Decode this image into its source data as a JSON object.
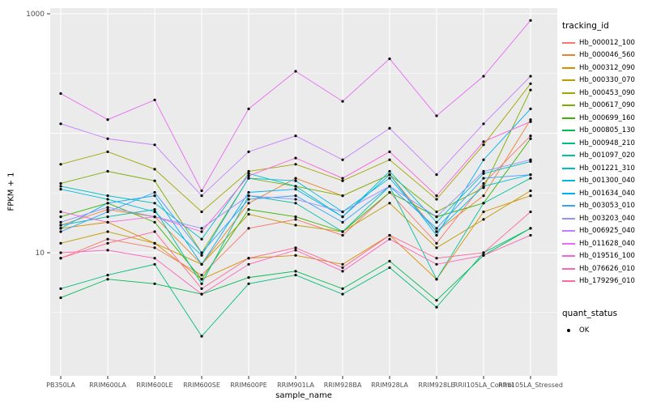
{
  "figure": {
    "ylabel": "FPKM + 1",
    "xlabel": "sample_name"
  },
  "legend": {
    "tracking_title": "tracking_id",
    "quant_title": "quant_status",
    "quant_items": [
      {
        "label": "OK",
        "symbol": "point",
        "color": "#000000"
      }
    ]
  },
  "chart_data": {
    "type": "line",
    "x_type": "categorical",
    "y_scale": "log10",
    "title": "",
    "xlabel": "sample_name",
    "ylabel": "FPKM + 1",
    "ylim": [
      1,
      1100
    ],
    "legend_position": "right",
    "panel_bg": "#EBEBEB",
    "grid_color": "#FFFFFF",
    "point_color": "#000000",
    "y_ticks": [
      {
        "value": 10,
        "label": "10"
      },
      {
        "value": 1000,
        "label": "1000"
      }
    ],
    "y_major_grid": [
      10,
      100,
      1000
    ],
    "y_minor_grid": [
      3.162,
      31.623,
      316.228
    ],
    "categories": [
      "PB350LA",
      "RRIM600LA",
      "RRIM600LE",
      "RRIM600SE",
      "RRIM600PE",
      "RRIM901LA",
      "RRIM928BA",
      "RRIM928LA",
      "RRIM928LE",
      "RRII105LA_Control",
      "RRII105LA_Stressed"
    ],
    "series": [
      {
        "name": "Hb_000012_100",
        "color": "#F8766D",
        "values": [
          9,
          13,
          11,
          6.5,
          16,
          19,
          14,
          32,
          12,
          38,
          95
        ]
      },
      {
        "name": "Hb_000046_560",
        "color": "#EA8331",
        "values": [
          17,
          23,
          20,
          8,
          26,
          42,
          30,
          45,
          15,
          30,
          130
        ]
      },
      {
        "name": "Hb_000312_090",
        "color": "#D89000",
        "values": [
          16,
          18,
          12,
          6,
          9,
          9.5,
          8,
          14,
          6,
          22,
          30
        ]
      },
      {
        "name": "Hb_000330_070",
        "color": "#C09B00",
        "values": [
          12,
          15,
          12,
          8,
          21,
          17,
          15,
          26,
          11,
          19,
          33
        ]
      },
      {
        "name": "Hb_000453_090",
        "color": "#A3A500",
        "values": [
          55,
          70,
          50,
          22,
          48,
          55,
          40,
          60,
          28,
          80,
          260
        ]
      },
      {
        "name": "Hb_000617_090",
        "color": "#7CAE00",
        "values": [
          38,
          48,
          40,
          10,
          42,
          36,
          30,
          45,
          22,
          35,
          230
        ]
      },
      {
        "name": "Hb_000699_160",
        "color": "#39B600",
        "values": [
          20,
          26,
          18,
          6,
          23,
          20,
          15,
          32,
          20,
          26,
          90
        ]
      },
      {
        "name": "Hb_000805_130",
        "color": "#00BB4E",
        "values": [
          4.2,
          6,
          5.5,
          4.5,
          6.2,
          7,
          5,
          8.5,
          4,
          9.5,
          16
        ]
      },
      {
        "name": "Hb_000948_210",
        "color": "#00BF7D",
        "values": [
          5,
          6.5,
          8,
          2,
          5.5,
          6.5,
          4.5,
          7.5,
          3.5,
          10,
          16
        ]
      },
      {
        "name": "Hb_001097_020",
        "color": "#00C1A3",
        "values": [
          17,
          20,
          23,
          5.5,
          30,
          26,
          15,
          36,
          6,
          26,
          42
        ]
      },
      {
        "name": "Hb_001221_310",
        "color": "#00BFC4",
        "values": [
          36,
          30,
          26,
          13,
          46,
          36,
          20,
          48,
          18,
          46,
          58
        ]
      },
      {
        "name": "Hb_001300_040",
        "color": "#00BAE0",
        "values": [
          34,
          28,
          22,
          9.5,
          42,
          40,
          22,
          42,
          15,
          36,
          45
        ]
      },
      {
        "name": "Hb_001634_040",
        "color": "#00B0F6",
        "values": [
          16,
          26,
          30,
          8,
          32,
          34,
          20,
          45,
          14,
          60,
          160
        ]
      },
      {
        "name": "Hb_003053_010",
        "color": "#35A2FF",
        "values": [
          15,
          22,
          32,
          10,
          28,
          30,
          18,
          36,
          16,
          42,
          45
        ]
      },
      {
        "name": "Hb_003203_040",
        "color": "#9590FF",
        "values": [
          18,
          24,
          20,
          16,
          30,
          28,
          22,
          36,
          20,
          48,
          60
        ]
      },
      {
        "name": "Hb_006925_040",
        "color": "#C77CFF",
        "values": [
          120,
          90,
          80,
          30,
          70,
          95,
          60,
          110,
          45,
          120,
          300
        ]
      },
      {
        "name": "Hb_011628_040",
        "color": "#E76BF3",
        "values": [
          215,
          130,
          190,
          33,
          160,
          330,
          185,
          420,
          140,
          300,
          880
        ]
      },
      {
        "name": "Hb_019516_100",
        "color": "#FA62DB",
        "values": [
          22,
          18,
          20,
          15,
          44,
          62,
          42,
          70,
          30,
          85,
          125
        ]
      },
      {
        "name": "Hb_076626_010",
        "color": "#FF62BC",
        "values": [
          10,
          10.5,
          9,
          4.5,
          8,
          10.5,
          7,
          13,
          8,
          9.5,
          14
        ]
      },
      {
        "name": "Hb_179296_010",
        "color": "#FF6A98",
        "values": [
          9,
          12,
          15,
          5,
          9,
          11,
          7.5,
          14,
          9,
          10,
          22
        ]
      }
    ]
  }
}
